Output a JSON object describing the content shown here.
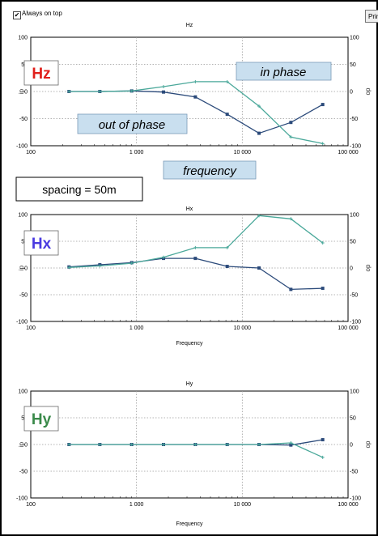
{
  "window": {
    "always_on_top_label": "Always on top",
    "always_on_top_checked": true,
    "print_label": "Prin"
  },
  "annotations": {
    "spacing": "spacing = 50m",
    "frequency_callout": "frequency",
    "in_phase": "in phase",
    "out_of_phase": "out of phase"
  },
  "colors": {
    "series_dark": "#2b4a7a",
    "series_teal": "#4aa89a",
    "callout_fill": "#c9dfef",
    "Hz_label": "#e0201c",
    "Hx_label": "#4a3ae0",
    "Hy_label": "#3a8a4a"
  },
  "chart_data": [
    {
      "type": "line",
      "title": "Hz",
      "panel_label": "Hz",
      "x_scale": "log",
      "xlim": [
        100,
        100000
      ],
      "ylim": [
        -100,
        100
      ],
      "grid": true,
      "xlabel": "",
      "left_icon": "ip",
      "right_icon": "op",
      "x_ticks": [
        "100",
        "1 000",
        "10 000",
        "100 000"
      ],
      "y_ticks_left": [
        "100",
        "50",
        "0",
        "-50",
        "-100"
      ],
      "y_ticks_right": [
        "100",
        "50",
        "0",
        "-50",
        "-100"
      ],
      "series": [
        {
          "color_key": "series_dark",
          "points": [
            [
              230,
              0
            ],
            [
              450,
              0
            ],
            [
              900,
              1
            ],
            [
              1800,
              -1
            ],
            [
              3600,
              -10
            ],
            [
              7200,
              -42
            ],
            [
              14400,
              -77
            ],
            [
              28800,
              -57
            ],
            [
              57600,
              -24
            ]
          ]
        },
        {
          "color_key": "series_teal",
          "points": [
            [
              230,
              0
            ],
            [
              450,
              0
            ],
            [
              900,
              1
            ],
            [
              1800,
              9
            ],
            [
              3600,
              18
            ],
            [
              7200,
              18
            ],
            [
              14400,
              -27
            ],
            [
              28800,
              -84
            ],
            [
              57600,
              -96
            ]
          ]
        }
      ]
    },
    {
      "type": "line",
      "title": "Hx",
      "panel_label": "Hx",
      "x_scale": "log",
      "xlim": [
        100,
        100000
      ],
      "ylim": [
        -100,
        100
      ],
      "grid": true,
      "xlabel": "Frequency",
      "left_icon": "ip",
      "right_icon": "op",
      "x_ticks": [
        "100",
        "1 000",
        "10 000",
        "100 000"
      ],
      "y_ticks_left": [
        "100",
        "50",
        "0",
        "-50",
        "-100"
      ],
      "y_ticks_right": [
        "100",
        "50",
        "0",
        "-50",
        "-100"
      ],
      "series": [
        {
          "color_key": "series_dark",
          "points": [
            [
              230,
              2
            ],
            [
              450,
              6
            ],
            [
              900,
              10
            ],
            [
              1800,
              18
            ],
            [
              3600,
              18
            ],
            [
              7200,
              3
            ],
            [
              14400,
              0
            ],
            [
              28800,
              -40
            ],
            [
              57600,
              -38
            ]
          ]
        },
        {
          "color_key": "series_teal",
          "points": [
            [
              230,
              1
            ],
            [
              450,
              4
            ],
            [
              900,
              9
            ],
            [
              1800,
              20
            ],
            [
              3600,
              38
            ],
            [
              7200,
              38
            ],
            [
              14400,
              98
            ],
            [
              28800,
              92
            ],
            [
              57600,
              47
            ]
          ]
        }
      ]
    },
    {
      "type": "line",
      "title": "Hy",
      "panel_label": "Hy",
      "x_scale": "log",
      "xlim": [
        100,
        100000
      ],
      "ylim": [
        -100,
        100
      ],
      "grid": true,
      "xlabel": "Frequency",
      "left_icon": "ip",
      "right_icon": "op",
      "x_ticks": [
        "100",
        "1 000",
        "10 000",
        "100 000"
      ],
      "y_ticks_left": [
        "100",
        "50",
        "0",
        "-50",
        "-100"
      ],
      "y_ticks_right": [
        "100",
        "50",
        "0",
        "-50",
        "-100"
      ],
      "series": [
        {
          "color_key": "series_dark",
          "points": [
            [
              230,
              0
            ],
            [
              450,
              0
            ],
            [
              900,
              0
            ],
            [
              1800,
              0
            ],
            [
              3600,
              0
            ],
            [
              7200,
              0
            ],
            [
              14400,
              0
            ],
            [
              28800,
              -1
            ],
            [
              57600,
              9
            ]
          ]
        },
        {
          "color_key": "series_teal",
          "points": [
            [
              230,
              0
            ],
            [
              450,
              0
            ],
            [
              900,
              0
            ],
            [
              1800,
              0
            ],
            [
              3600,
              0
            ],
            [
              7200,
              0
            ],
            [
              14400,
              0
            ],
            [
              28800,
              3
            ],
            [
              57600,
              -24
            ]
          ]
        }
      ]
    }
  ]
}
